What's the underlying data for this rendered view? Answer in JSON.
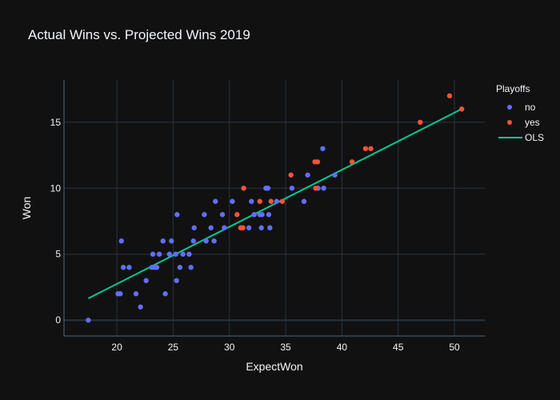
{
  "chart_data": {
    "type": "scatter",
    "title": "Actual Wins vs. Projected Wins 2019",
    "xlabel": "ExpectWon",
    "ylabel": "Won",
    "xlim": [
      15.3,
      52.7
    ],
    "ylim": [
      -1.2,
      18.2
    ],
    "xticks": [
      20,
      25,
      30,
      35,
      40,
      45,
      50
    ],
    "yticks": [
      0,
      5,
      10,
      15
    ],
    "grid": true,
    "legend": {
      "title": "Playoffs",
      "placement": "top-right"
    },
    "series": [
      {
        "name": "no",
        "color": "#636efa",
        "points": [
          [
            17.46,
            0
          ],
          [
            20.1,
            2
          ],
          [
            20.3,
            2
          ],
          [
            20.4,
            6
          ],
          [
            20.57,
            4
          ],
          [
            21.09,
            4
          ],
          [
            21.7,
            2
          ],
          [
            22.1,
            1
          ],
          [
            22.6,
            3
          ],
          [
            23.1,
            4
          ],
          [
            23.34,
            4
          ],
          [
            23.55,
            4
          ],
          [
            23.2,
            5
          ],
          [
            23.77,
            5
          ],
          [
            24.1,
            6
          ],
          [
            24.85,
            6
          ],
          [
            24.3,
            2
          ],
          [
            24.67,
            5
          ],
          [
            25.23,
            5
          ],
          [
            25.3,
            3
          ],
          [
            25.35,
            8
          ],
          [
            25.6,
            4
          ],
          [
            25.87,
            5
          ],
          [
            26.42,
            5
          ],
          [
            26.58,
            4
          ],
          [
            26.8,
            6
          ],
          [
            26.87,
            7
          ],
          [
            27.77,
            8
          ],
          [
            27.93,
            6
          ],
          [
            28.36,
            7
          ],
          [
            28.64,
            6
          ],
          [
            28.76,
            9
          ],
          [
            29.38,
            8
          ],
          [
            29.55,
            7
          ],
          [
            30.26,
            9
          ],
          [
            31.73,
            7
          ],
          [
            31.96,
            9
          ],
          [
            32.2,
            8
          ],
          [
            32.7,
            8
          ],
          [
            32.9,
            8
          ],
          [
            32.84,
            7
          ],
          [
            33.24,
            10
          ],
          [
            33.43,
            10
          ],
          [
            33.5,
            8
          ],
          [
            33.6,
            7
          ],
          [
            34.2,
            9
          ],
          [
            35.56,
            10
          ],
          [
            36.63,
            9
          ],
          [
            36.96,
            11
          ],
          [
            37.88,
            10
          ],
          [
            38.3,
            13
          ],
          [
            38.38,
            10
          ],
          [
            39.37,
            11
          ]
        ]
      },
      {
        "name": "yes",
        "color": "#EF553B",
        "points": [
          [
            30.68,
            8
          ],
          [
            31.0,
            7
          ],
          [
            31.2,
            7
          ],
          [
            31.27,
            10
          ],
          [
            32.7,
            9
          ],
          [
            33.7,
            9
          ],
          [
            34.7,
            9
          ],
          [
            35.47,
            11
          ],
          [
            37.6,
            12
          ],
          [
            37.84,
            12
          ],
          [
            37.67,
            10
          ],
          [
            40.9,
            12
          ],
          [
            42.1,
            13
          ],
          [
            42.57,
            13
          ],
          [
            46.96,
            15
          ],
          [
            49.57,
            17
          ],
          [
            50.65,
            16
          ]
        ]
      }
    ],
    "trendline": {
      "name": "OLS",
      "color": "#00cc96",
      "x": [
        17.46,
        50.65
      ],
      "y": [
        1.65,
        16.0
      ]
    }
  },
  "colors": {
    "background": "#111111",
    "grid": "#283442",
    "axis": "#506784",
    "text": "#f2f5fa"
  }
}
